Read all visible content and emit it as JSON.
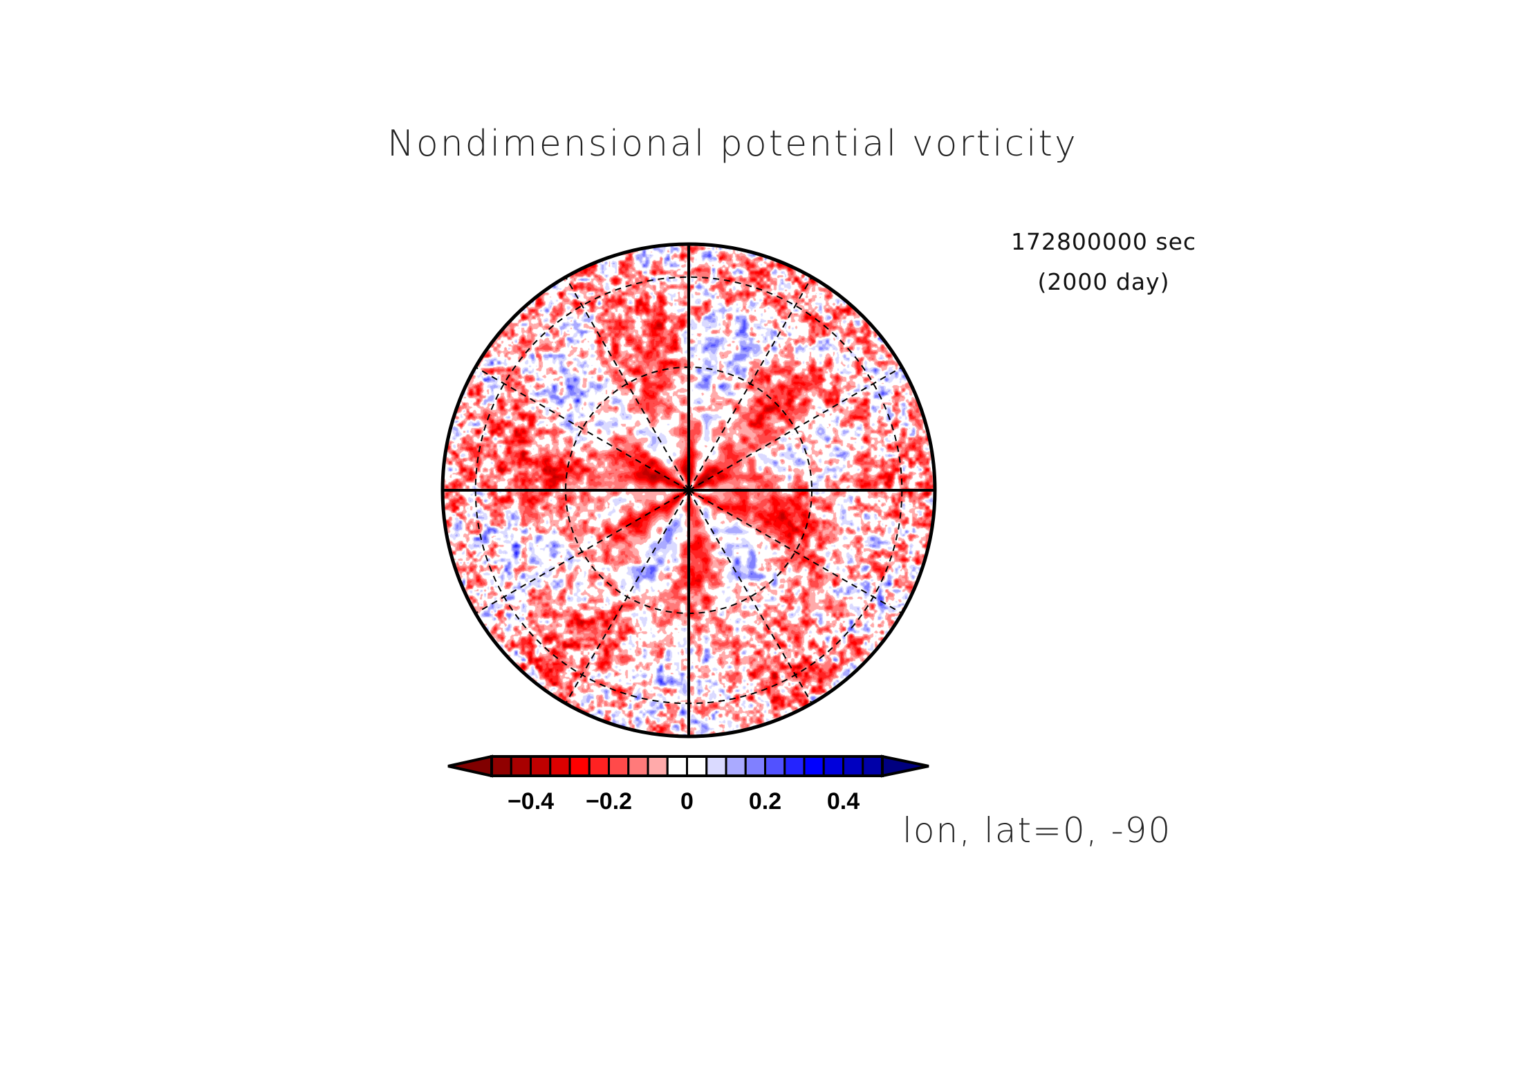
{
  "chart_data": {
    "type": "heatmap",
    "projection": "orthographic, south polar",
    "title": "Nondimensional potential vorticity",
    "time_label": "172800000 sec",
    "time_days": "(2000 day)",
    "xlabel": "lon, lat=0, -90",
    "colorbar": {
      "levels": [
        -0.5,
        -0.45,
        -0.4,
        -0.35,
        -0.3,
        -0.25,
        -0.2,
        -0.15,
        -0.1,
        -0.05,
        0,
        0.05,
        0.1,
        0.15,
        0.2,
        0.25,
        0.3,
        0.35,
        0.4,
        0.45,
        0.5
      ],
      "colors": [
        "#900000",
        "#a80000",
        "#c00000",
        "#dc0000",
        "#ff0000",
        "#ff2222",
        "#ff4a4a",
        "#ff7a7a",
        "#ffaaaa",
        "#ffffff",
        "#ffffff",
        "#dadaff",
        "#aaaaff",
        "#8080ff",
        "#5252ff",
        "#2424ff",
        "#0000ff",
        "#0000dc",
        "#0000c0",
        "#0000a8"
      ],
      "under_color": "#800000",
      "over_color": "#000080",
      "tick_values": [
        -0.4,
        -0.2,
        0,
        0.2,
        0.4
      ],
      "tick_labels": [
        "−0.4",
        "−0.2",
        "0",
        "0.2",
        "0.4"
      ]
    },
    "grid": {
      "meridian_spacing_deg": 30,
      "latitude_circles_deg": [
        -30,
        -60
      ]
    }
  }
}
